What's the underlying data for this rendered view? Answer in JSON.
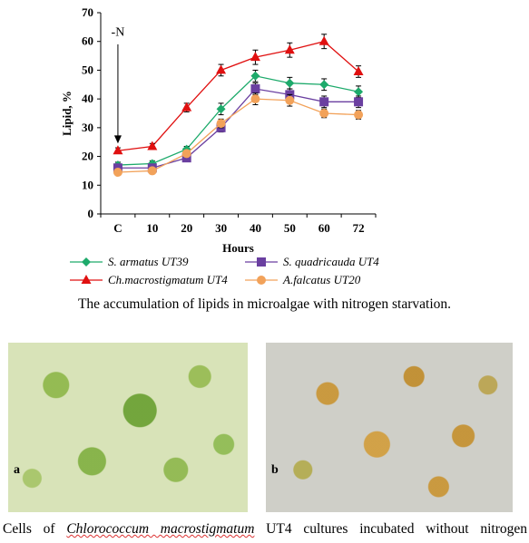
{
  "chart_data": {
    "type": "line",
    "categories": [
      "C",
      "10",
      "20",
      "30",
      "40",
      "50",
      "60",
      "72"
    ],
    "xlabel": "Hours",
    "ylabel": "Lipid, %",
    "ylim": [
      0,
      70
    ],
    "yticks": [
      0,
      10,
      20,
      30,
      40,
      50,
      60,
      70
    ],
    "annotation": "-N",
    "grid": false,
    "legend_position": "bottom",
    "series": [
      {
        "name": "S. armatus UT39",
        "color": "#1daa6b",
        "marker": "diamond",
        "values": [
          17,
          17.5,
          22.5,
          36.5,
          48,
          45.5,
          45,
          42.5
        ],
        "errors": [
          1,
          1,
          1,
          2,
          2,
          2,
          2,
          2
        ]
      },
      {
        "name": "S. quadricauda UT4",
        "color": "#6a3fa0",
        "marker": "square",
        "values": [
          16,
          16,
          19.5,
          30,
          43.5,
          41.5,
          39,
          39
        ],
        "errors": [
          1,
          1,
          1,
          1.5,
          2,
          2,
          2,
          2
        ]
      },
      {
        "name": "Ch.macrostigmatum UT4",
        "color": "#e01010",
        "marker": "triangle",
        "values": [
          22,
          23.5,
          37,
          50,
          54.5,
          57,
          60,
          49.5
        ],
        "errors": [
          1,
          1,
          1.5,
          2,
          2.5,
          2.5,
          2.5,
          2
        ]
      },
      {
        "name": "A.falcatus UT20",
        "color": "#f2a25a",
        "marker": "circle",
        "values": [
          14.5,
          15,
          21,
          31.5,
          40,
          39.5,
          35,
          34.5
        ],
        "errors": [
          1,
          1,
          1,
          1.5,
          2,
          2,
          1.5,
          1.5
        ]
      }
    ]
  },
  "captions": {
    "chart": "The accumulation of lipids in microalgae with nitrogen starvation.",
    "photos_prefix": "Cells of ",
    "photos_species": "Chlorococcum macrostigmatum",
    "photos_suffix": " UT4 cultures incubated without nitrogen"
  },
  "photos": {
    "a_label": "a",
    "b_label": "b"
  }
}
